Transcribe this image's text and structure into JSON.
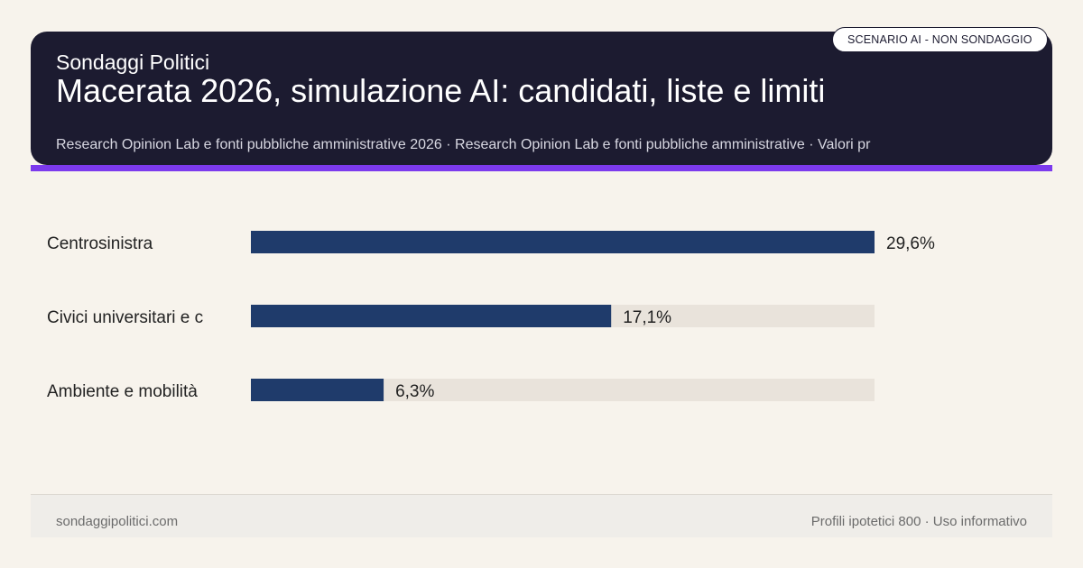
{
  "header": {
    "brand": "Sondaggi Politici",
    "title": "Macerata 2026, simulazione AI: candidati, liste e limiti",
    "subtitle": "Research Opinion Lab e fonti pubbliche amministrative 2026 · Research Opinion Lab e fonti pubbliche amministrative · Valori pr",
    "badge": "SCENARIO AI - NON SONDAGGIO"
  },
  "chart_data": {
    "type": "bar",
    "orientation": "horizontal",
    "categories": [
      "Centrosinistra",
      "Civici universitari e c",
      "Ambiente e mobilità"
    ],
    "values": [
      29.6,
      17.1,
      6.3
    ],
    "value_labels": [
      "29,6%",
      "17,1%",
      "6,3%"
    ],
    "xlim": [
      0,
      29.6
    ],
    "grid": false,
    "legend": "none",
    "colors": {
      "bar": "#1f3b6b",
      "track": "#e9e3db",
      "label": "#222222"
    }
  },
  "footer": {
    "site": "sondaggipolitici.com",
    "note": "Profili ipotetici 800 · Uso informativo"
  },
  "colors": {
    "header_bg": "#1c1b30",
    "accent": "#7c3aed",
    "page_bg": "#f7f3ec"
  }
}
